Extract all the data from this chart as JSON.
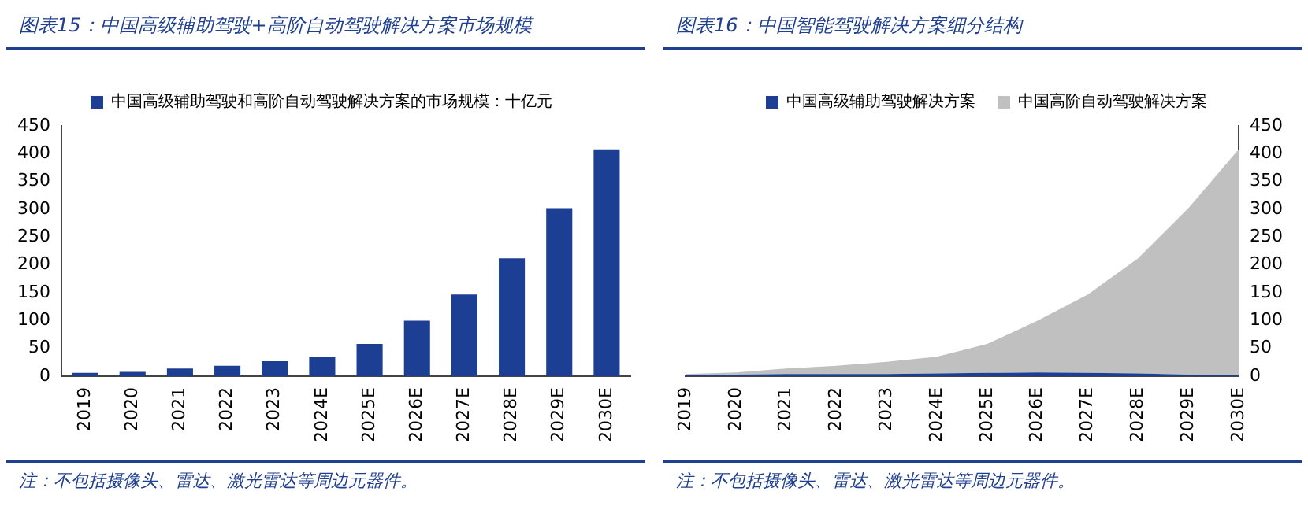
{
  "chart_data": [
    {
      "type": "bar",
      "title": "图表15：中国高级辅助驾驶+高阶自动驾驶解决方案市场规模",
      "categories": [
        "2019",
        "2020",
        "2021",
        "2022",
        "2023",
        "2024E",
        "2025E",
        "2026E",
        "2027E",
        "2028E",
        "2029E",
        "2030E"
      ],
      "series": [
        {
          "name": "中国高级辅助驾驶和高阶自动驾驶解决方案的市场规模：十亿元",
          "color": "#1c3f94",
          "values": [
            6,
            8,
            14,
            19,
            27,
            35,
            58,
            100,
            147,
            212,
            302,
            408
          ]
        }
      ],
      "ylim": [
        0,
        450
      ],
      "yticks": [
        0,
        50,
        100,
        150,
        200,
        250,
        300,
        350,
        400,
        450
      ],
      "grid": false,
      "legend": "top",
      "annotations": [
        "注：不包括摄像头、雷达、激光雷达等周边元器件。"
      ]
    },
    {
      "type": "area",
      "title": "图表16：中国智能驾驶解决方案细分结构",
      "categories": [
        "2019",
        "2020",
        "2021",
        "2022",
        "2023",
        "2024E",
        "2025E",
        "2026E",
        "2027E",
        "2028E",
        "2029E",
        "2030E"
      ],
      "stacked": true,
      "series": [
        {
          "name": "中国高级辅助驾驶解决方案",
          "color": "#1c3f94",
          "axis": "y2",
          "values": [
            2,
            3,
            4,
            4,
            4,
            5,
            6,
            7,
            6,
            5,
            3,
            2
          ]
        },
        {
          "name": "中国高阶自动驾驶解决方案",
          "color": "#c0c0c0",
          "axis": "y2",
          "values": [
            2,
            4,
            10,
            15,
            22,
            30,
            52,
            93,
            141,
            207,
            299,
            406
          ]
        }
      ],
      "y2lim": [
        0,
        450
      ],
      "y2ticks": [
        0,
        50,
        100,
        150,
        200,
        250,
        300,
        350,
        400,
        450
      ],
      "grid": false,
      "legend": "top",
      "annotations": [
        "注：不包括摄像头、雷达、激光雷达等周边元器件。"
      ]
    }
  ]
}
